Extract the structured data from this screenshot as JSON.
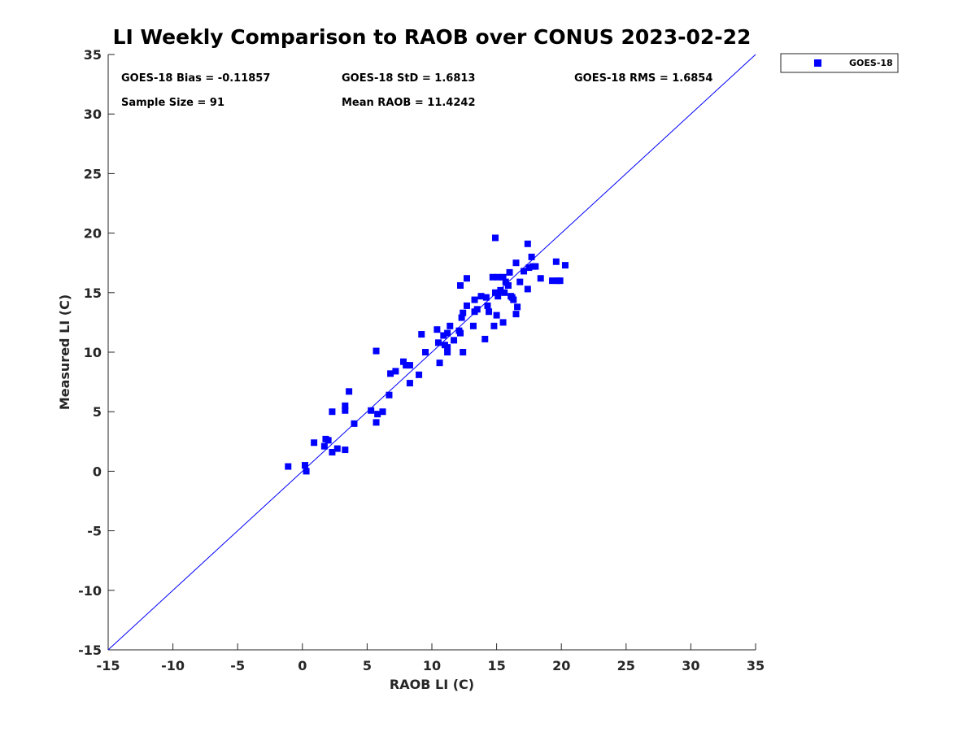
{
  "chart_data": {
    "type": "scatter",
    "title": "LI Weekly Comparison to RAOB over CONUS 2023-02-22",
    "xlabel": "RAOB LI (C)",
    "ylabel": "Measured LI (C)",
    "xlim": [
      -15,
      35
    ],
    "ylim": [
      -15,
      35
    ],
    "xticks": [
      -15,
      -10,
      -5,
      0,
      5,
      10,
      15,
      20,
      25,
      30,
      35
    ],
    "yticks": [
      -15,
      -10,
      -5,
      0,
      5,
      10,
      15,
      20,
      25,
      30,
      35
    ],
    "grid": false,
    "legend": {
      "position": "top-right-outside",
      "entries": [
        "GOES-18"
      ]
    },
    "reference_line": {
      "label": "1:1",
      "from": [
        -15,
        -15
      ],
      "to": [
        35,
        35
      ]
    },
    "annotations": [
      "GOES-18 Bias = -0.11857",
      "GOES-18 StD = 1.6813",
      "GOES-18 RMS = 1.6854",
      "Sample Size = 91",
      "Mean RAOB = 11.4242"
    ],
    "series": [
      {
        "name": "GOES-18",
        "color": "#0000ff",
        "marker": "square",
        "points": [
          [
            -1.1,
            0.4
          ],
          [
            0.2,
            0.5
          ],
          [
            0.3,
            0.0
          ],
          [
            0.9,
            2.4
          ],
          [
            1.7,
            2.1
          ],
          [
            1.8,
            2.7
          ],
          [
            2.0,
            2.6
          ],
          [
            2.3,
            1.6
          ],
          [
            2.3,
            5.0
          ],
          [
            2.7,
            1.9
          ],
          [
            3.3,
            1.8
          ],
          [
            3.3,
            5.1
          ],
          [
            3.3,
            5.5
          ],
          [
            3.6,
            6.7
          ],
          [
            4.0,
            4.0
          ],
          [
            5.3,
            5.1
          ],
          [
            5.7,
            4.1
          ],
          [
            5.8,
            4.8
          ],
          [
            5.7,
            10.1
          ],
          [
            6.2,
            5.0
          ],
          [
            6.7,
            6.4
          ],
          [
            6.8,
            8.2
          ],
          [
            7.2,
            8.4
          ],
          [
            7.8,
            9.2
          ],
          [
            8.0,
            8.9
          ],
          [
            8.3,
            8.9
          ],
          [
            8.3,
            7.4
          ],
          [
            9.0,
            8.1
          ],
          [
            9.2,
            11.5
          ],
          [
            9.5,
            10.0
          ],
          [
            10.4,
            11.9
          ],
          [
            10.5,
            10.8
          ],
          [
            10.6,
            9.1
          ],
          [
            10.9,
            11.4
          ],
          [
            11.0,
            10.6
          ],
          [
            11.2,
            11.6
          ],
          [
            11.2,
            10.4
          ],
          [
            11.2,
            10.0
          ],
          [
            11.4,
            12.2
          ],
          [
            11.7,
            11.0
          ],
          [
            12.1,
            11.8
          ],
          [
            12.2,
            11.6
          ],
          [
            12.2,
            15.6
          ],
          [
            12.3,
            12.9
          ],
          [
            12.4,
            13.3
          ],
          [
            12.4,
            10.0
          ],
          [
            12.7,
            16.2
          ],
          [
            12.7,
            13.9
          ],
          [
            13.2,
            12.2
          ],
          [
            13.3,
            14.4
          ],
          [
            13.3,
            13.4
          ],
          [
            13.5,
            13.6
          ],
          [
            13.8,
            14.7
          ],
          [
            14.1,
            11.1
          ],
          [
            14.2,
            14.6
          ],
          [
            14.3,
            13.9
          ],
          [
            14.4,
            13.4
          ],
          [
            14.7,
            16.3
          ],
          [
            14.8,
            12.2
          ],
          [
            14.9,
            19.6
          ],
          [
            14.9,
            15.0
          ],
          [
            15.0,
            13.1
          ],
          [
            15.1,
            14.7
          ],
          [
            15.1,
            16.3
          ],
          [
            15.3,
            15.2
          ],
          [
            15.5,
            16.3
          ],
          [
            15.5,
            12.5
          ],
          [
            15.6,
            15.0
          ],
          [
            15.7,
            15.9
          ],
          [
            15.9,
            15.6
          ],
          [
            16.0,
            16.7
          ],
          [
            16.1,
            14.7
          ],
          [
            16.2,
            14.6
          ],
          [
            16.3,
            14.4
          ],
          [
            16.5,
            17.5
          ],
          [
            16.5,
            13.2
          ],
          [
            16.6,
            13.8
          ],
          [
            16.8,
            15.9
          ],
          [
            17.1,
            16.8
          ],
          [
            17.4,
            19.1
          ],
          [
            17.4,
            15.3
          ],
          [
            17.5,
            17.1
          ],
          [
            17.7,
            18.0
          ],
          [
            17.8,
            17.2
          ],
          [
            18.0,
            17.2
          ],
          [
            18.4,
            16.2
          ],
          [
            19.3,
            16.0
          ],
          [
            19.6,
            17.6
          ],
          [
            19.7,
            16.0
          ],
          [
            19.9,
            16.0
          ],
          [
            20.3,
            17.3
          ]
        ]
      }
    ]
  },
  "stats": {
    "bias": "GOES-18 Bias = -0.11857",
    "std": "GOES-18 StD = 1.6813",
    "rms": "GOES-18 RMS = 1.6854",
    "sample_size": "Sample Size = 91",
    "mean_raob": "Mean RAOB = 11.4242"
  },
  "legend": {
    "label": "GOES-18",
    "color": "#0000ff"
  }
}
